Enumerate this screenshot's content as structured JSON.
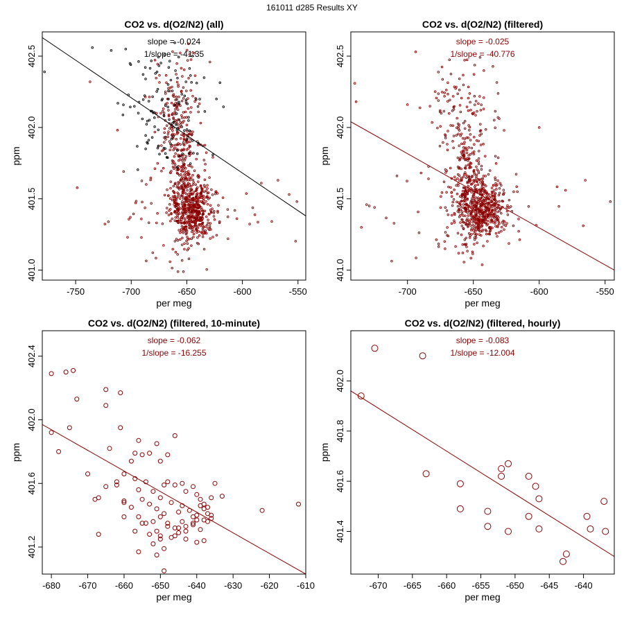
{
  "suptitle": "161011   d285   Results XY",
  "colors": {
    "red": "#8b0000",
    "black": "#000000"
  },
  "chart_data": [
    {
      "type": "scatter",
      "title": "CO2 vs. d(O2/N2) (all)",
      "xlabel": "per meg",
      "ylabel": "ppm",
      "xlim": [
        -780,
        -543
      ],
      "ylim": [
        400.93,
        402.67
      ],
      "xticks": [
        -750,
        -700,
        -650,
        -600,
        -550
      ],
      "yticks": [
        401.0,
        401.5,
        402.0,
        402.5
      ],
      "slope_text": "slope = -0.024",
      "inv_slope_text": "1/slope = -41.35",
      "annotation_color": "#000000",
      "line_color": "#000000",
      "fit_line": {
        "x": [
          -780,
          -543
        ],
        "y": [
          402.63,
          401.38
        ]
      },
      "cloud": {
        "seed": 11,
        "n": 900,
        "extra_black": 120,
        "clusters": [
          {
            "w": 0.55,
            "cx": -645,
            "cy": 401.43,
            "sx": 9,
            "sy": 0.11
          },
          {
            "w": 0.2,
            "cx": -655,
            "cy": 401.75,
            "sx": 7,
            "sy": 0.18
          },
          {
            "w": 0.15,
            "cx": -660,
            "cy": 402.15,
            "sx": 12,
            "sy": 0.22
          },
          {
            "w": 0.1,
            "cx": -650,
            "cy": 401.4,
            "sx": 35,
            "sy": 0.2
          }
        ],
        "clip": [
          -778,
          -545,
          400.95,
          402.6
        ]
      },
      "points_x": [
        -778,
        -737,
        -735,
        -718,
        -712,
        -705,
        -690,
        -687,
        -551,
        -568,
        -583,
        -670,
        -672
      ],
      "points_y": [
        402.39,
        402.32,
        402.56,
        402.54,
        402.17,
        402.55,
        402.06,
        401.85,
        401.48,
        401.63,
        401.61,
        402.51,
        402.2
      ],
      "points_color": [
        "#000000",
        "#8b0000",
        "#000000",
        "#000000",
        "#000000",
        "#000000",
        "#000000",
        "#000000",
        "#8b0000",
        "#8b0000",
        "#8b0000",
        "#000000",
        "#000000"
      ],
      "marker_r": 1.3
    },
    {
      "type": "scatter",
      "title": "CO2 vs. d(O2/N2) (filtered)",
      "xlabel": "per meg",
      "ylabel": "ppm",
      "xlim": [
        -743,
        -543
      ],
      "ylim": [
        400.93,
        402.67
      ],
      "xticks": [
        -700,
        -650,
        -600,
        -550
      ],
      "yticks": [
        401.0,
        401.5,
        402.0,
        402.5
      ],
      "slope_text": "slope = -0.025",
      "inv_slope_text": "1/slope = -40.776",
      "annotation_color": "#8b0000",
      "line_color": "#8b0000",
      "fit_line": {
        "x": [
          -743,
          -543
        ],
        "y": [
          402.04,
          401.0
        ]
      },
      "cloud": {
        "seed": 22,
        "n": 850,
        "extra_black": 0,
        "clusters": [
          {
            "w": 0.55,
            "cx": -645,
            "cy": 401.43,
            "sx": 9,
            "sy": 0.11
          },
          {
            "w": 0.2,
            "cx": -655,
            "cy": 401.75,
            "sx": 7,
            "sy": 0.18
          },
          {
            "w": 0.15,
            "cx": -660,
            "cy": 402.15,
            "sx": 12,
            "sy": 0.22
          },
          {
            "w": 0.1,
            "cx": -650,
            "cy": 401.4,
            "sx": 32,
            "sy": 0.2
          }
        ],
        "clip": [
          -741,
          -545,
          400.95,
          402.6
        ]
      },
      "points_x": [
        -740,
        -739,
        -735,
        -729,
        -725,
        -708,
        -700,
        -546,
        -565,
        -580,
        -600
      ],
      "points_y": [
        402.31,
        402.18,
        401.3,
        401.45,
        401.44,
        401.66,
        402.16,
        401.48,
        401.63,
        401.56,
        402.0
      ],
      "points_color": [
        "#8b0000",
        "#8b0000",
        "#8b0000",
        "#8b0000",
        "#8b0000",
        "#8b0000",
        "#8b0000",
        "#8b0000",
        "#8b0000",
        "#8b0000",
        "#8b0000"
      ],
      "marker_r": 1.3
    },
    {
      "type": "scatter",
      "title": "CO2 vs. d(O2/N2) (filtered, 10-minute)",
      "xlabel": "per meg",
      "ylabel": "ppm",
      "xlim": [
        -682.5,
        -610
      ],
      "ylim": [
        401.03,
        402.56
      ],
      "xticks": [
        -680,
        -670,
        -660,
        -650,
        -640,
        -630,
        -620,
        -610
      ],
      "yticks": [
        401.2,
        401.6,
        402.0,
        402.4
      ],
      "slope_text": "slope = -0.062",
      "inv_slope_text": "1/slope = -16.255",
      "annotation_color": "#8b0000",
      "line_color": "#8b0000",
      "fit_line": {
        "x": [
          -682.5,
          -610
        ],
        "y": [
          401.97,
          401.03
        ]
      },
      "cloud": null,
      "points_x": [
        -680,
        -680,
        -676,
        -674,
        -675,
        -673,
        -678,
        -670,
        -668,
        -667,
        -665,
        -665,
        -664,
        -662,
        -661,
        -661,
        -660,
        -660,
        -658,
        -657,
        -656,
        -655,
        -653,
        -651,
        -650,
        -648,
        -646,
        -665,
        -662,
        -660,
        -657,
        -656,
        -654,
        -652,
        -650,
        -649,
        -648,
        -646,
        -644,
        -643,
        -641,
        -640,
        -639,
        -638,
        -637,
        -636,
        -635,
        -633,
        -658,
        -655,
        -653,
        -651,
        -649,
        -647,
        -645,
        -644,
        -642,
        -641,
        -640,
        -639,
        -638,
        -637,
        -636,
        -656,
        -654,
        -652,
        -650,
        -648,
        -646,
        -644,
        -643,
        -641,
        -639,
        -637,
        -660,
        -657,
        -655,
        -653,
        -651,
        -650,
        -648,
        -647,
        -645,
        -643,
        -641,
        -640,
        -638,
        -636,
        -652,
        -650,
        -649,
        -646,
        -645,
        -643,
        -640,
        -638,
        -656,
        -651,
        -649,
        -622,
        -612,
        -667
      ],
      "points_y": [
        402.29,
        401.92,
        402.3,
        402.31,
        401.95,
        402.13,
        401.8,
        401.66,
        401.5,
        401.51,
        402.19,
        402.09,
        401.82,
        401.59,
        402.17,
        401.95,
        401.66,
        401.49,
        401.74,
        401.79,
        401.87,
        401.78,
        401.79,
        401.85,
        401.74,
        401.78,
        401.9,
        401.58,
        401.61,
        401.48,
        401.63,
        401.56,
        401.61,
        401.55,
        401.51,
        401.59,
        401.61,
        401.59,
        401.6,
        401.55,
        401.58,
        401.53,
        401.5,
        401.47,
        401.45,
        401.51,
        401.6,
        401.52,
        401.45,
        401.5,
        401.47,
        401.44,
        401.41,
        401.48,
        401.42,
        401.46,
        401.43,
        401.39,
        401.37,
        401.46,
        401.44,
        401.41,
        401.4,
        401.39,
        401.35,
        401.36,
        401.39,
        401.35,
        401.32,
        401.36,
        401.33,
        401.34,
        401.31,
        401.36,
        401.39,
        401.3,
        401.35,
        401.28,
        401.3,
        401.27,
        401.33,
        401.26,
        401.32,
        401.3,
        401.35,
        401.4,
        401.37,
        401.38,
        401.22,
        401.25,
        401.19,
        401.27,
        401.29,
        401.25,
        401.23,
        401.24,
        401.17,
        401.15,
        401.05,
        401.43,
        401.47,
        401.28
      ],
      "points_color": null,
      "marker_r": 3
    },
    {
      "type": "scatter",
      "title": "CO2 vs. d(O2/N2) (filtered, hourly)",
      "xlabel": "per meg",
      "ylabel": "ppm",
      "xlim": [
        -674,
        -635.5
      ],
      "ylim": [
        401.23,
        402.2
      ],
      "xticks": [
        -670,
        -665,
        -660,
        -655,
        -650,
        -645,
        -640
      ],
      "yticks": [
        401.4,
        401.6,
        401.8,
        402.0
      ],
      "slope_text": "slope = -0.083",
      "inv_slope_text": "1/slope = -12.004",
      "annotation_color": "#8b0000",
      "line_color": "#8b0000",
      "fit_line": {
        "x": [
          -674,
          -635.5
        ],
        "y": [
          401.96,
          401.3
        ]
      },
      "cloud": null,
      "points_x": [
        -672.5,
        -670.5,
        -663.5,
        -663,
        -658,
        -658,
        -654,
        -654,
        -652,
        -652,
        -651,
        -651,
        -648,
        -648,
        -647,
        -646.5,
        -646.5,
        -643,
        -642.5,
        -639.5,
        -639,
        -637,
        -636.8
      ],
      "points_y": [
        401.94,
        402.13,
        402.1,
        401.63,
        401.59,
        401.49,
        401.48,
        401.42,
        401.65,
        401.62,
        401.67,
        401.4,
        401.62,
        401.46,
        401.58,
        401.53,
        401.41,
        401.28,
        401.31,
        401.46,
        401.41,
        401.52,
        401.4
      ],
      "points_color": null,
      "marker_r": 4.5
    }
  ]
}
